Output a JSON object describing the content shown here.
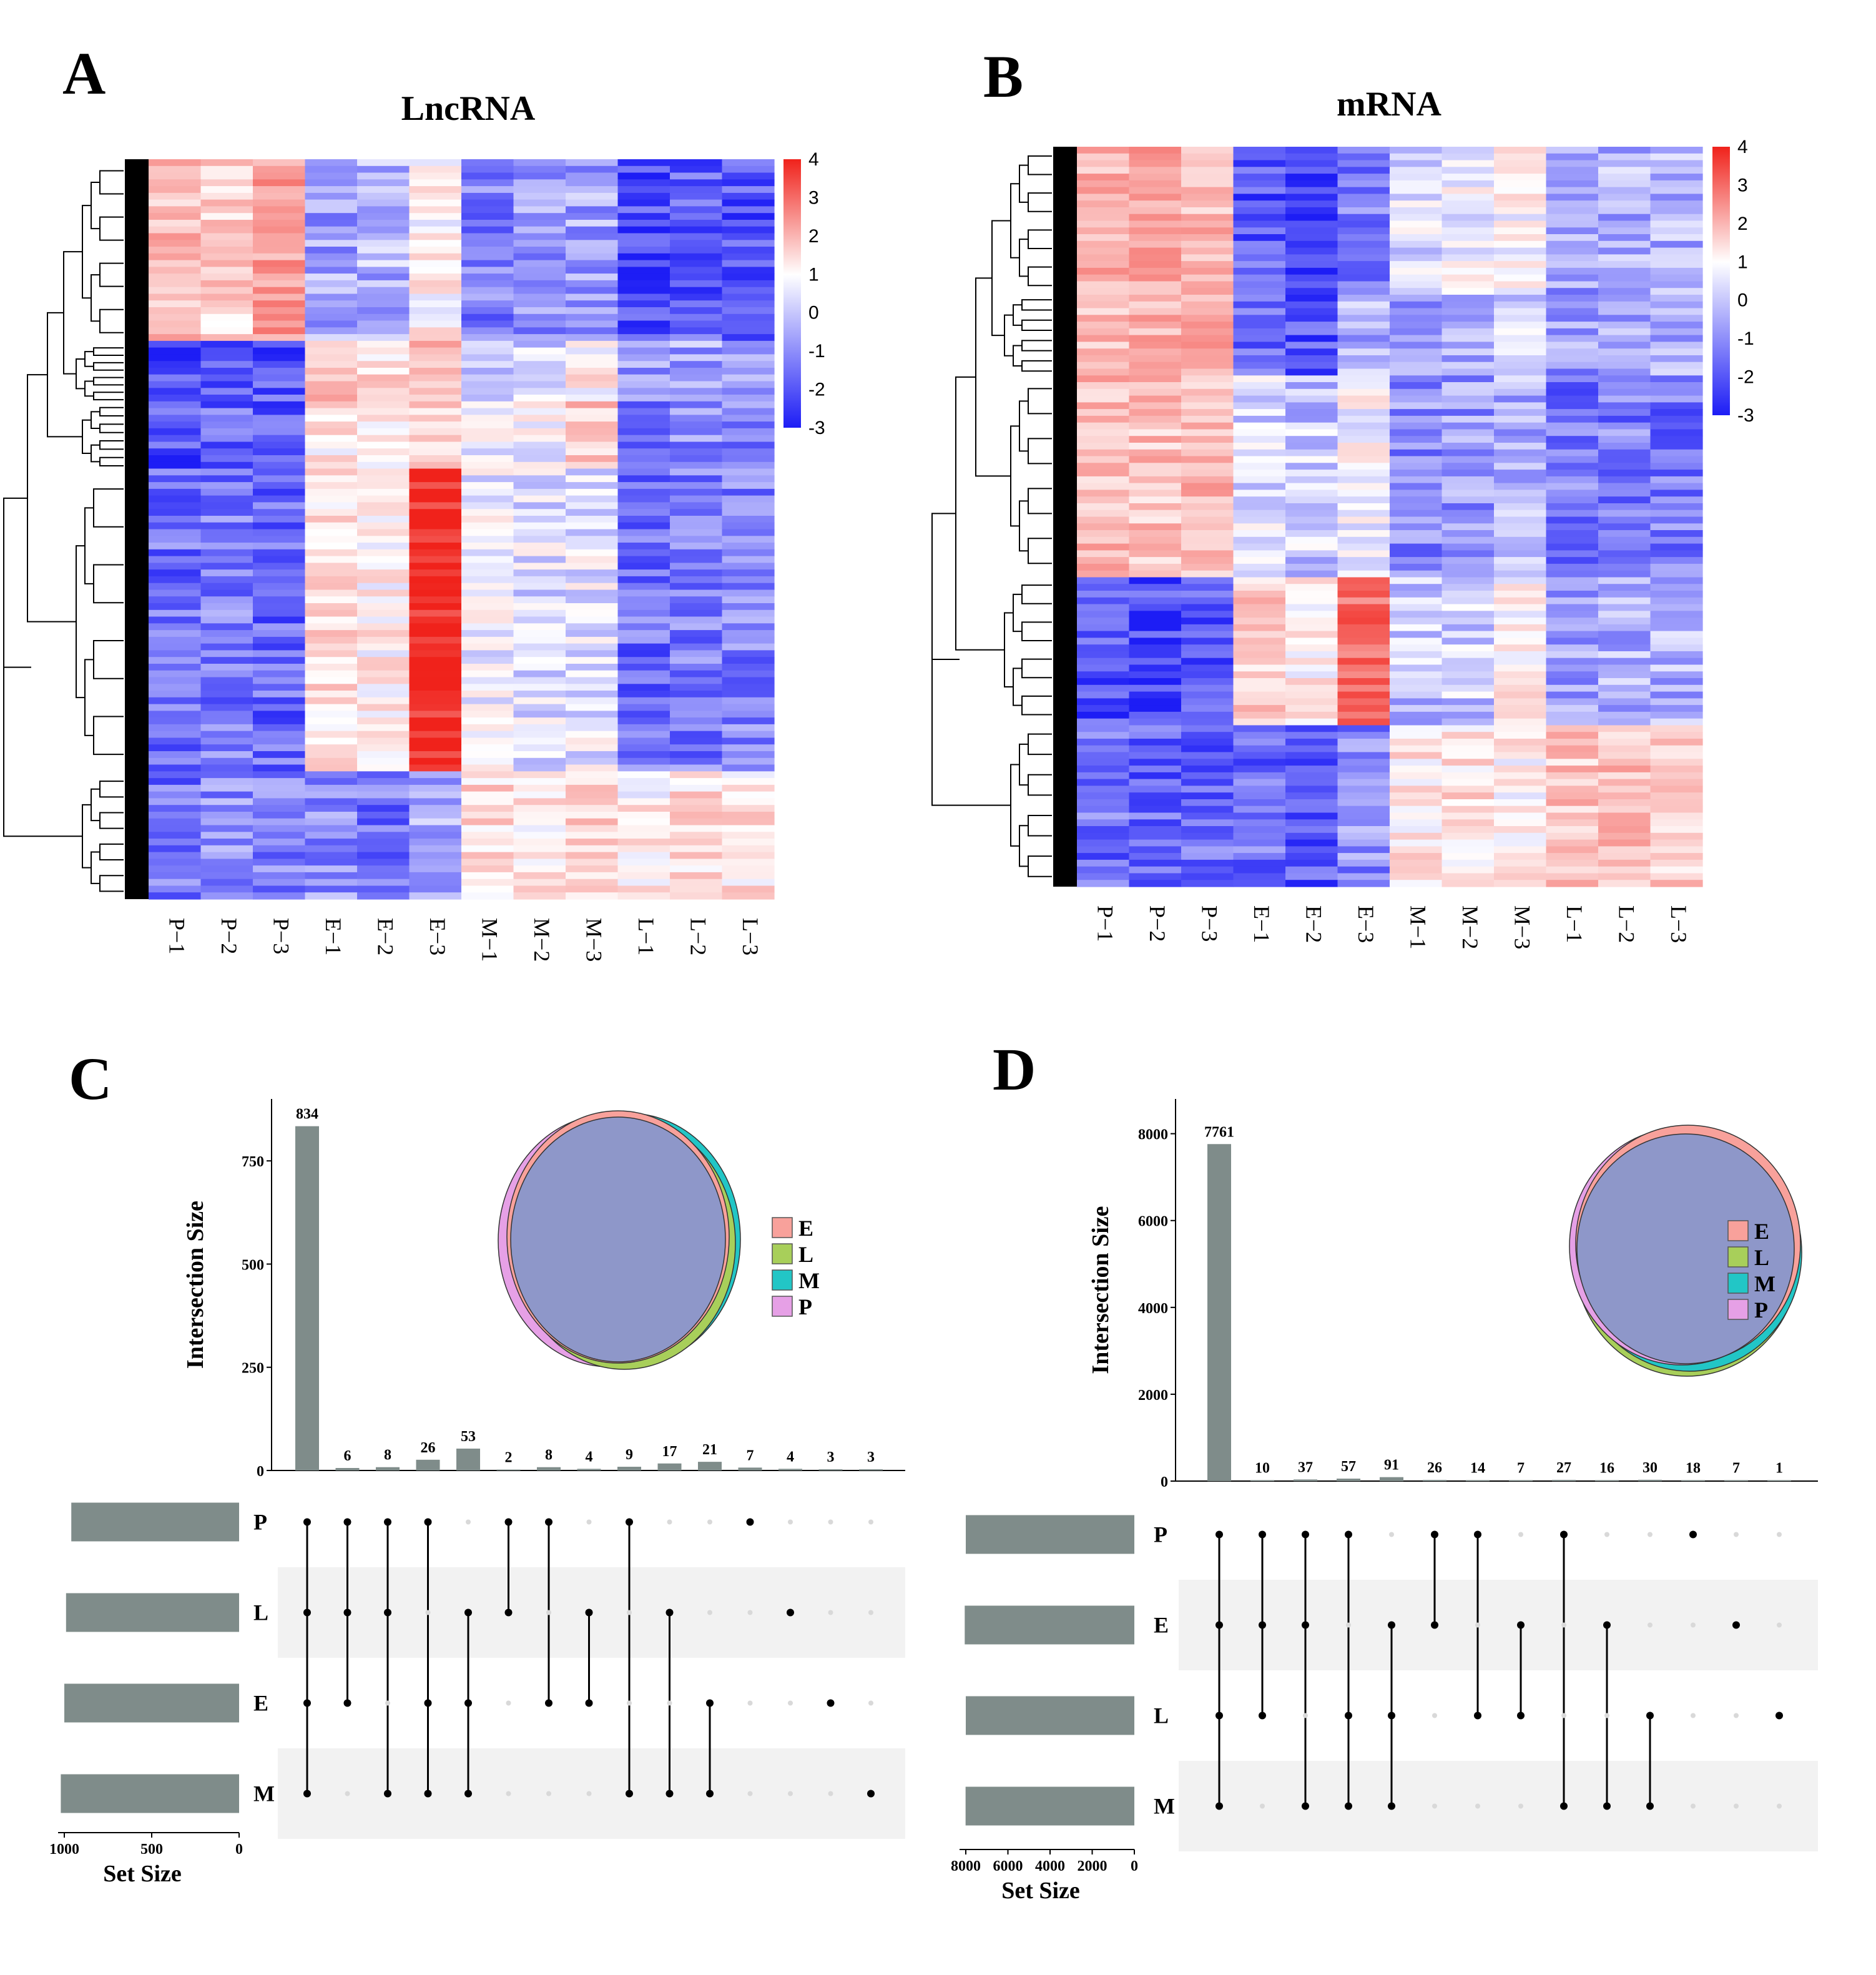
{
  "panels": {
    "A": {
      "letter": "A",
      "title": "LncRNA"
    },
    "B": {
      "letter": "B",
      "title": "mRNA"
    },
    "C": {
      "letter": "C"
    },
    "D": {
      "letter": "D"
    }
  },
  "colors": {
    "high": "#f0221b",
    "mid": "#ffffff",
    "low": "#1d1df5",
    "bar": "#7f8c8a",
    "dot": "#000000",
    "dot_inactive": "#d9d9d9",
    "stripe": "#f2f2f2"
  },
  "chart_data": [
    {
      "id": "A",
      "type": "heatmap",
      "title": "LncRNA",
      "columns": [
        "P−1",
        "P−2",
        "P−3",
        "E−1",
        "E−2",
        "E−3",
        "M−1",
        "M−2",
        "M−3",
        "L−1",
        "L−2",
        "L−3"
      ],
      "colorbar": {
        "min": -3,
        "max": 4,
        "ticks": [
          "4",
          "3",
          "2",
          "1",
          "0",
          "-1",
          "-2",
          "-3"
        ]
      },
      "blocks": [
        {
          "rows": [
            0.0,
            0.25
          ],
          "values": [
            1.2,
            0.8,
            1.8,
            -1.2,
            -1.0,
            0.2,
            -1.6,
            -1.4,
            -1.2,
            -2.4,
            -2.2,
            -2.3
          ]
        },
        {
          "rows": [
            0.25,
            0.33
          ],
          "values": [
            -2.4,
            -2.0,
            -2.2,
            1.1,
            0.6,
            1.2,
            -0.5,
            -0.6,
            0.3,
            -1.2,
            -1.2,
            -1.0
          ]
        },
        {
          "rows": [
            0.33,
            0.42
          ],
          "values": [
            -2.3,
            -2.0,
            -2.2,
            0.4,
            0.3,
            0.9,
            0.0,
            -0.1,
            1.0,
            -1.8,
            -1.6,
            -1.7
          ]
        },
        {
          "rows": [
            0.42,
            0.83
          ],
          "values": [
            -1.9,
            -1.7,
            -2.0,
            0.6,
            0.3,
            3.8,
            -0.2,
            -0.4,
            -0.3,
            -1.9,
            -1.7,
            -1.7
          ]
        },
        {
          "rows": [
            0.83,
            1.0
          ],
          "values": [
            -1.8,
            -1.5,
            -1.7,
            -1.5,
            -1.8,
            -1.2,
            0.7,
            0.5,
            0.9,
            0.3,
            0.6,
            0.5
          ]
        }
      ]
    },
    {
      "id": "B",
      "type": "heatmap",
      "title": "mRNA",
      "columns": [
        "P−1",
        "P−2",
        "P−3",
        "E−1",
        "E−2",
        "E−3",
        "M−1",
        "M−2",
        "M−3",
        "L−1",
        "L−2",
        "L−3"
      ],
      "colorbar": {
        "min": -3,
        "max": 4,
        "ticks": [
          "4",
          "3",
          "2",
          "1",
          "0",
          "-1",
          "-2",
          "-3"
        ]
      },
      "blocks": [
        {
          "rows": [
            0.0,
            0.2
          ],
          "values": [
            1.4,
            1.5,
            1.3,
            -2.2,
            -2.6,
            -1.7,
            -0.4,
            -0.2,
            0.2,
            -1.2,
            -1.1,
            -1.0
          ]
        },
        {
          "rows": [
            0.2,
            0.31
          ],
          "values": [
            1.3,
            1.4,
            1.5,
            -1.9,
            -2.3,
            -1.0,
            -1.3,
            -1.1,
            -0.6,
            -1.4,
            -1.3,
            -1.2
          ]
        },
        {
          "rows": [
            0.31,
            0.58
          ],
          "values": [
            1.2,
            1.1,
            1.3,
            -0.5,
            -0.7,
            0.0,
            -1.5,
            -1.4,
            -1.0,
            -1.8,
            -1.7,
            -1.8
          ]
        },
        {
          "rows": [
            0.58,
            0.78
          ],
          "values": [
            -2.3,
            -2.4,
            -2.3,
            0.9,
            0.3,
            2.6,
            -0.8,
            -0.7,
            0.3,
            -1.2,
            -1.0,
            -1.1
          ]
        },
        {
          "rows": [
            0.78,
            1.0
          ],
          "values": [
            -1.9,
            -2.1,
            -2.0,
            -1.9,
            -2.3,
            -1.5,
            0.4,
            0.6,
            0.3,
            1.0,
            1.1,
            0.9
          ]
        }
      ]
    },
    {
      "id": "C",
      "type": "bar",
      "chart_kind": "upset",
      "ylabel": "Intersection Size",
      "ylim": [
        0,
        900
      ],
      "yticks": [
        0,
        250,
        500,
        750
      ],
      "values": [
        834,
        6,
        8,
        26,
        53,
        2,
        8,
        4,
        9,
        17,
        21,
        7,
        4,
        3,
        3
      ],
      "sets": [
        "P",
        "L",
        "E",
        "M"
      ],
      "set_sizes": [
        960,
        990,
        1000,
        1020
      ],
      "set_size_axis": {
        "label": "Set Size",
        "max": 1000,
        "ticks": [
          1000,
          500,
          0
        ]
      },
      "membership": [
        [
          "P",
          "L",
          "E",
          "M"
        ],
        [
          "P",
          "L",
          "E"
        ],
        [
          "P",
          "L",
          "M"
        ],
        [
          "P",
          "E",
          "M"
        ],
        [
          "L",
          "E",
          "M"
        ],
        [
          "P",
          "L"
        ],
        [
          "P",
          "E"
        ],
        [
          "L",
          "E"
        ],
        [
          "P",
          "M"
        ],
        [
          "L",
          "M"
        ],
        [
          "E",
          "M"
        ],
        [
          "P"
        ],
        [
          "L"
        ],
        [
          "E"
        ],
        [
          "M"
        ]
      ],
      "venn": {
        "legend": [
          "E",
          "L",
          "M",
          "P"
        ],
        "legend_colors": [
          "#f8a19b",
          "#a8cf5a",
          "#22c6c6",
          "#e6a0e6"
        ]
      }
    },
    {
      "id": "D",
      "type": "bar",
      "chart_kind": "upset",
      "ylabel": "Intersection Size",
      "ylim": [
        0,
        8800
      ],
      "yticks": [
        0,
        2000,
        4000,
        6000,
        8000
      ],
      "values": [
        7761,
        10,
        37,
        57,
        91,
        26,
        14,
        7,
        27,
        16,
        30,
        18,
        7,
        1
      ],
      "sets": [
        "P",
        "E",
        "L",
        "M"
      ],
      "set_sizes": [
        8000,
        8050,
        8000,
        8010
      ],
      "set_size_axis": {
        "label": "Set Size",
        "max": 8000,
        "ticks": [
          8000,
          6000,
          4000,
          2000,
          0
        ]
      },
      "membership": [
        [
          "P",
          "E",
          "L",
          "M"
        ],
        [
          "P",
          "E",
          "L"
        ],
        [
          "P",
          "E",
          "M"
        ],
        [
          "P",
          "L",
          "M"
        ],
        [
          "E",
          "L",
          "M"
        ],
        [
          "P",
          "E"
        ],
        [
          "P",
          "L"
        ],
        [
          "E",
          "L"
        ],
        [
          "P",
          "M"
        ],
        [
          "E",
          "M"
        ],
        [
          "L",
          "M"
        ],
        [
          "P"
        ],
        [
          "E"
        ],
        [
          "L"
        ]
      ],
      "venn": {
        "legend": [
          "E",
          "L",
          "M",
          "P"
        ],
        "legend_colors": [
          "#f8a19b",
          "#a8cf5a",
          "#22c6c6",
          "#e6a0e6"
        ]
      }
    }
  ]
}
